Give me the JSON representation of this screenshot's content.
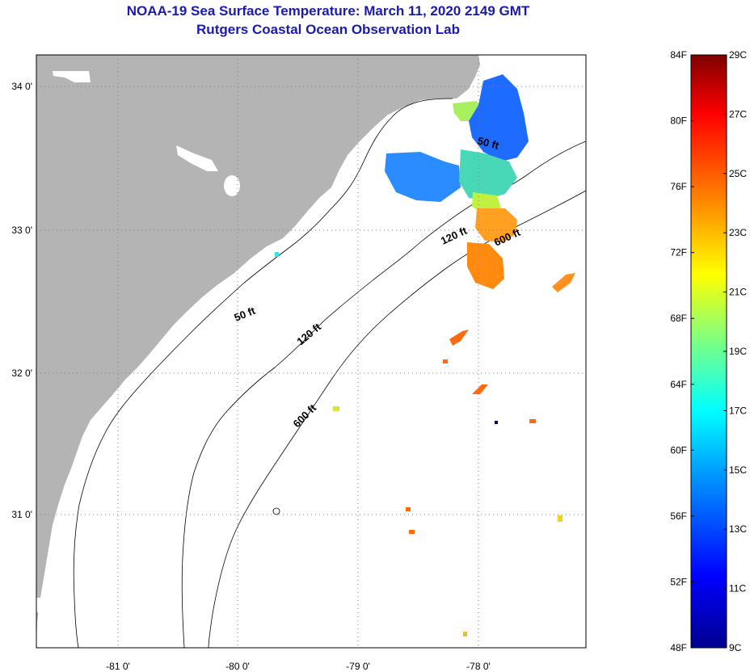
{
  "title": {
    "line1": "NOAA-19 Sea Surface Temperature:  March 11, 2020 2149 GMT",
    "line2": "Rutgers Coastal Ocean Observation Lab"
  },
  "axes": {
    "lon_ticks": [
      "-81 0'",
      "-80 0'",
      "-79 0'",
      "-78 0'"
    ],
    "lat_ticks": [
      "34 0'",
      "33 0'",
      "32 0'",
      "31 0'"
    ]
  },
  "contours": {
    "c50_a": "50 ft",
    "c50_b": "50 ft",
    "c120_a": "120 ft",
    "c120_b": "120 ft",
    "c600_a": "600 ft",
    "c600_b": "600 ft"
  },
  "colorbar": {
    "fahrenheit": [
      "84F",
      "80F",
      "76F",
      "72F",
      "68F",
      "64F",
      "60F",
      "56F",
      "52F",
      "48F"
    ],
    "celsius": [
      "29C",
      "27C",
      "25C",
      "23C",
      "21C",
      "19C",
      "17C",
      "15C",
      "13C",
      "11C",
      "9C"
    ],
    "colors": {
      "stop0": "#00008f",
      "stop1": "#0000ff",
      "stop2": "#00a0ff",
      "stop3": "#00ffff",
      "stop4": "#80ff80",
      "stop5": "#ffff00",
      "stop6": "#ff8000",
      "stop7": "#ff0000",
      "stop8": "#800000"
    }
  },
  "colors": {
    "land": "#b4b4b4",
    "title": "#1a1ab0"
  }
}
